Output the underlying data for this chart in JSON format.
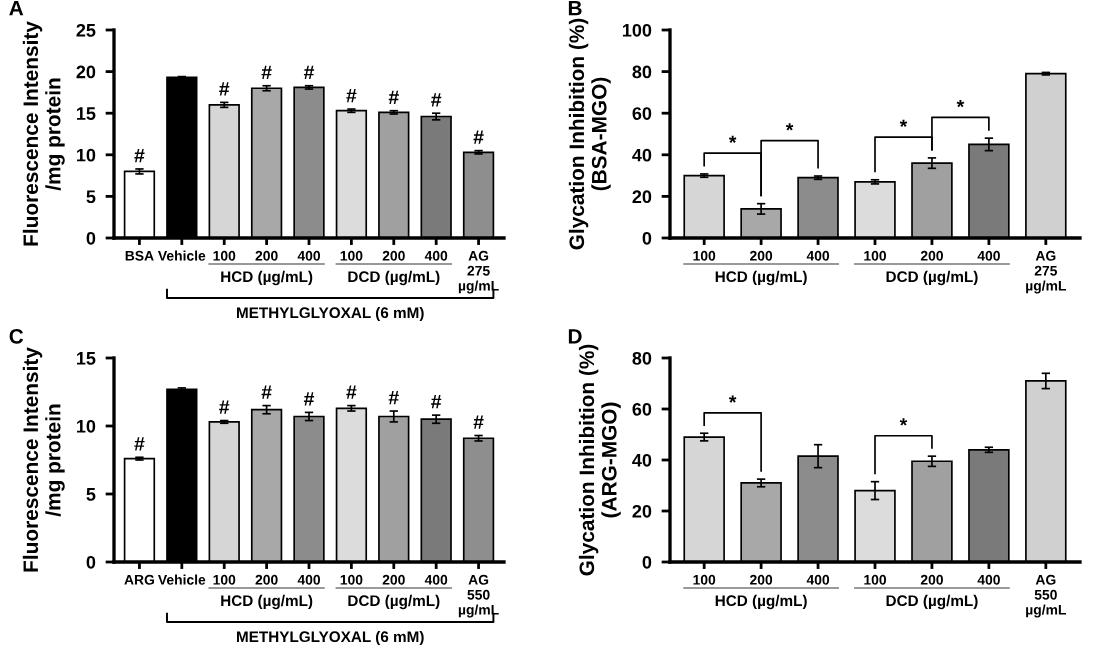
{
  "chart_data": [
    {
      "type": "bar",
      "title": "A",
      "ylabel": "Fluorescence Intensity\n/mg protein",
      "categories": [
        "BSA",
        "Vehicle",
        "100",
        "200",
        "400",
        "100",
        "200",
        "400",
        "AG\n275\nµg/mL"
      ],
      "values": [
        8.0,
        19.3,
        16.0,
        18.0,
        18.1,
        15.3,
        15.1,
        14.6,
        10.3
      ],
      "errors": [
        0.3,
        0.1,
        0.3,
        0.3,
        0.2,
        0.2,
        0.2,
        0.4,
        0.2
      ],
      "value_labels": [
        "#",
        null,
        "#",
        "#",
        "#",
        "#",
        "#",
        "#",
        "#"
      ],
      "colors": [
        "#ffffff",
        "#000000",
        "#d6d6d6",
        "#a8a8a8",
        "#8c8c8c",
        "#dcdcdc",
        "#a0a0a0",
        "#7a7a7a",
        "#8e8e8e"
      ],
      "ylim": [
        0,
        25
      ],
      "yticks": [
        0,
        5,
        10,
        15,
        20,
        25
      ],
      "annotations": [
        "HCD (µg/mL)",
        "DCD (µg/mL)",
        "METHYLGLYOXAL (6 mM)"
      ]
    },
    {
      "type": "bar",
      "title": "B",
      "ylabel": "Glycation Inhibition (%)\n(BSA-MGO)",
      "categories": [
        "100",
        "200",
        "400",
        "100",
        "200",
        "400",
        "AG\n275\nµg/mL"
      ],
      "values": [
        30,
        14,
        29,
        27,
        36,
        45,
        79
      ],
      "errors": [
        0.8,
        2.5,
        0.8,
        1,
        2.5,
        3,
        0.6
      ],
      "colors": [
        "#d6d6d6",
        "#a8a8a8",
        "#8c8c8c",
        "#dcdcdc",
        "#a0a0a0",
        "#7a7a7a",
        "#d0d0d0"
      ],
      "ylim": [
        0,
        100
      ],
      "yticks": [
        0,
        20,
        40,
        60,
        80,
        100
      ],
      "annotations": [
        "HCD (µg/mL)",
        "DCD (µg/mL)",
        "*",
        "*",
        "*",
        "*"
      ]
    },
    {
      "type": "bar",
      "title": "C",
      "ylabel": "Fluorescence Intensity\n/mg protein",
      "categories": [
        "ARG",
        "Vehicle",
        "100",
        "200",
        "400",
        "100",
        "200",
        "400",
        "AG\n550\nµg/mL"
      ],
      "values": [
        7.6,
        12.7,
        10.3,
        11.2,
        10.7,
        11.3,
        10.7,
        10.5,
        9.1
      ],
      "errors": [
        0.1,
        0.1,
        0.1,
        0.3,
        0.3,
        0.2,
        0.4,
        0.3,
        0.2
      ],
      "value_labels": [
        "#",
        null,
        "#",
        "#",
        "#",
        "#",
        "#",
        "#",
        "#"
      ],
      "colors": [
        "#ffffff",
        "#000000",
        "#d6d6d6",
        "#a8a8a8",
        "#8c8c8c",
        "#dcdcdc",
        "#a0a0a0",
        "#7a7a7a",
        "#8e8e8e"
      ],
      "ylim": [
        0,
        15
      ],
      "yticks": [
        0,
        5,
        10,
        15
      ],
      "annotations": [
        "HCD (µg/mL)",
        "DCD (µg/mL)",
        "METHYLGLYOXAL (6 mM)"
      ]
    },
    {
      "type": "bar",
      "title": "D",
      "ylabel": "Glycation Inhibition (%)\n(ARG-MGO)",
      "categories": [
        "100",
        "200",
        "400",
        "100",
        "200",
        "400",
        "AG\n550\nµg/mL"
      ],
      "values": [
        49,
        31,
        41.5,
        28,
        39.5,
        44,
        71
      ],
      "errors": [
        1.5,
        1.5,
        4.5,
        3.5,
        2,
        1,
        3
      ],
      "colors": [
        "#d6d6d6",
        "#a8a8a8",
        "#8c8c8c",
        "#dcdcdc",
        "#a0a0a0",
        "#7a7a7a",
        "#d0d0d0"
      ],
      "ylim": [
        0,
        80
      ],
      "yticks": [
        0,
        20,
        40,
        60,
        80
      ],
      "annotations": [
        "HCD (µg/mL)",
        "DCD (µg/mL)",
        "*",
        "*"
      ]
    }
  ]
}
